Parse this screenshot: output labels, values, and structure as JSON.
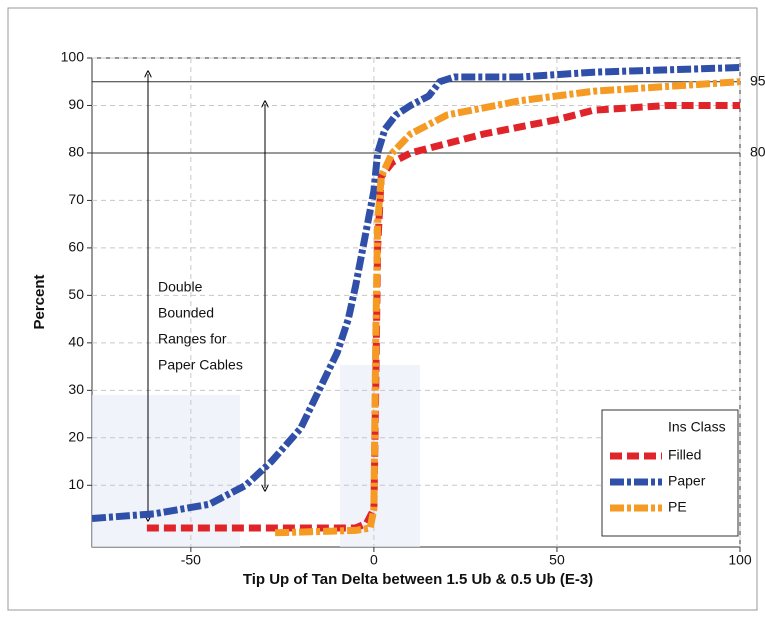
{
  "chart_data": {
    "type": "line",
    "xlabel": "Tip Up of Tan Delta between 1.5 Ub & 0.5 Ub (E-3)",
    "ylabel": "Percent",
    "xlim": [
      -77,
      100
    ],
    "ylim": [
      -3,
      100
    ],
    "xticks": [
      -50,
      0,
      50,
      100
    ],
    "yticks": [
      10,
      20,
      30,
      40,
      50,
      60,
      70,
      80,
      90,
      100
    ],
    "grid": true,
    "hlines": [
      95,
      80
    ],
    "annotation": [
      "Double",
      "Bounded",
      "Ranges for",
      "Paper Cables"
    ],
    "legend_title": "Ins Class",
    "legend": "lower right",
    "series": [
      {
        "name": "Filled",
        "color": "#e0242a",
        "x": [
          -62,
          -30,
          -5,
          -2,
          0,
          0.5,
          1,
          2,
          5,
          10,
          20,
          30,
          50,
          60,
          80,
          100
        ],
        "values": [
          1,
          1,
          1,
          2,
          5,
          30,
          60,
          75,
          78,
          80,
          82,
          84,
          87,
          89,
          90,
          90
        ]
      },
      {
        "name": "Paper",
        "color": "#2f4fa8",
        "x": [
          -77,
          -60,
          -45,
          -35,
          -28,
          -20,
          -15,
          -10,
          -7,
          -5,
          -3,
          -1,
          0,
          1,
          3,
          6,
          10,
          15,
          18,
          22,
          40,
          60,
          100
        ],
        "values": [
          3,
          4,
          6,
          10,
          15,
          22,
          30,
          38,
          45,
          52,
          60,
          68,
          72,
          80,
          85,
          88,
          90,
          92,
          95,
          96,
          96,
          97,
          98
        ]
      },
      {
        "name": "PE",
        "color": "#f59a23",
        "x": [
          -27,
          -5,
          -1,
          0,
          0.5,
          1,
          2,
          5,
          10,
          20,
          40,
          60,
          80,
          100
        ],
        "values": [
          0,
          0.5,
          1,
          5,
          40,
          65,
          75,
          80,
          84,
          88,
          91,
          93,
          94,
          95
        ]
      }
    ]
  }
}
